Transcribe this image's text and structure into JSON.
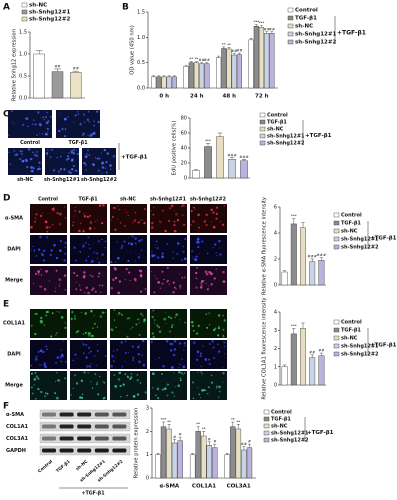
{
  "panel_labels": [
    "A",
    "B",
    "C",
    "D",
    "E",
    "F"
  ],
  "images_c": {
    "labels": [
      "Control",
      "TGF-β1",
      "sh-NC",
      "sh-Snhg12#1",
      "sh-Snhg12#2"
    ],
    "group_label": "+TGF-β1"
  },
  "images_d": {
    "columns": [
      "Control",
      "TGF-β1",
      "sh-NC",
      "sh-Snhg12#1",
      "sh-Snhg12#2"
    ],
    "rows": [
      "α-SMA",
      "DAPI",
      "Merge"
    ]
  },
  "images_e": {
    "rows": [
      "COL1A1",
      "DAPI",
      "Merge"
    ]
  },
  "blot_f": {
    "rows": [
      "α-SMA",
      "COL1A1",
      "COL3A1",
      "GAPDH"
    ],
    "lanes": [
      "Control",
      "TGF-β1",
      "sh-NC",
      "sh-Snhg12#1",
      "sh-Snhg12#2"
    ],
    "group_label": "+TGF-β1"
  },
  "chart_data": [
    {
      "type": "bar",
      "ylabel": "Relative Snhg12 expression",
      "categories": [
        "sh-NC",
        "sh-Snhg12#1",
        "sh-Snhg12#2"
      ],
      "colors": [
        "#ffffff",
        "#9a9a9a",
        "#e9e2c4"
      ],
      "values": [
        1.0,
        0.6,
        0.58
      ],
      "errors": [
        0.08,
        0.06,
        0.03
      ],
      "annotations": [
        null,
        "##",
        "##"
      ],
      "ylim": [
        0,
        1.5
      ],
      "yticks": [
        {
          "value": 0,
          "label": "0.0"
        },
        {
          "value": 0.5,
          "label": "0.5"
        },
        {
          "value": 1,
          "label": "1.0"
        },
        {
          "value": 1.5,
          "label": "1.5"
        }
      ]
    },
    {
      "type": "grouped_bar",
      "ylabel": "OD value (450 nm)",
      "categories": [
        "0 h",
        "24 h",
        "48 h",
        "72 h"
      ],
      "legend_group_label": "+TGF-β1",
      "series": [
        {
          "name": "Control",
          "color": "#ffffff",
          "values": [
            0.22,
            0.43,
            0.6,
            0.95
          ],
          "errors": [
            0.02,
            0.02,
            0.03,
            0.03
          ],
          "annotations": [
            null,
            null,
            null,
            null
          ]
        },
        {
          "name": "TGF-β1",
          "color": "#8c8c8c",
          "values": [
            0.22,
            0.5,
            0.78,
            1.22
          ],
          "errors": [
            0.02,
            0.02,
            0.03,
            0.03
          ],
          "annotations": [
            null,
            "**",
            "**",
            "***"
          ]
        },
        {
          "name": "sh-NC",
          "color": "#e6dfc2",
          "values": [
            0.22,
            0.5,
            0.77,
            1.2
          ],
          "errors": [
            0.02,
            0.02,
            0.03,
            0.03
          ],
          "annotations": [
            null,
            "**",
            "**",
            "***"
          ]
        },
        {
          "name": "sh-Snhg12#1",
          "color": "#c9d3e6",
          "values": [
            0.22,
            0.48,
            0.65,
            1.08
          ],
          "errors": [
            0.02,
            0.02,
            0.03,
            0.03
          ],
          "annotations": [
            null,
            "##",
            "##",
            "##"
          ]
        },
        {
          "name": "sh-Snhg12#2",
          "color": "#b9b3dd",
          "values": [
            0.22,
            0.48,
            0.66,
            1.08
          ],
          "errors": [
            0.02,
            0.02,
            0.03,
            0.03
          ],
          "annotations": [
            null,
            "##",
            "##",
            "##"
          ]
        }
      ],
      "ylim": [
        0,
        1.5
      ],
      "yticks": [
        {
          "value": 0,
          "label": "0.0"
        },
        {
          "value": 0.5,
          "label": "0.5"
        },
        {
          "value": 1,
          "label": "1.0"
        },
        {
          "value": 1.5,
          "label": "1.5"
        }
      ]
    },
    {
      "type": "bar",
      "ylabel": "EdU positive cells(%)",
      "legend_group_label": "+TGF-β1",
      "categories": [
        "Control",
        "TGF-β1",
        "sh-NC",
        "sh-Snhg12#1",
        "sh-Snhg12#2"
      ],
      "colors": [
        "#ffffff",
        "#8c8c8c",
        "#e6dfc2",
        "#c9d3e6",
        "#b9b3dd"
      ],
      "values": [
        10,
        42,
        55,
        25,
        23
      ],
      "errors": [
        1,
        4,
        5,
        2,
        2
      ],
      "annotations": [
        null,
        "***",
        null,
        "###",
        "###"
      ],
      "ylim": [
        0,
        80
      ],
      "yticks": [
        0,
        20,
        40,
        60,
        80
      ]
    },
    {
      "type": "bar",
      "ylabel": "Relative α-SMA fluorescence intensity",
      "legend_group_label": "+TGF-β1",
      "categories": [
        "Control",
        "TGF-β1",
        "sh-NC",
        "sh-Snhg12#1",
        "sh-Snhg12#2"
      ],
      "colors": [
        "#ffffff",
        "#8c8c8c",
        "#e6dfc2",
        "#c9d3e6",
        "#b9b3dd"
      ],
      "values": [
        1,
        4.7,
        4.4,
        1.8,
        1.9
      ],
      "errors": [
        0.1,
        0.4,
        0.4,
        0.2,
        0.2
      ],
      "annotations": [
        null,
        "***",
        null,
        "###",
        "###"
      ],
      "ylim": [
        0,
        6
      ],
      "yticks": [
        0,
        2,
        4,
        6
      ]
    },
    {
      "type": "bar",
      "ylabel": "Relative COL1A1 fluorescence intensity",
      "legend_group_label": "+TGF-β1",
      "categories": [
        "Control",
        "TGF-β1",
        "sh-NC",
        "sh-Snhg12#1",
        "sh-Snhg12#2"
      ],
      "colors": [
        "#ffffff",
        "#8c8c8c",
        "#e6dfc2",
        "#c9d3e6",
        "#b9b3dd"
      ],
      "values": [
        1,
        2.8,
        3.1,
        1.5,
        1.6
      ],
      "errors": [
        0.1,
        0.3,
        0.3,
        0.15,
        0.15
      ],
      "annotations": [
        null,
        "***",
        null,
        "##",
        "##"
      ],
      "ylim": [
        0,
        4
      ],
      "yticks": [
        0,
        1,
        2,
        3,
        4
      ]
    },
    {
      "type": "grouped_bar",
      "ylabel": "Relative protein expression",
      "categories": [
        "α-SMA",
        "COL1A1",
        "COL3A1"
      ],
      "legend_group_label": "+TGF-β1",
      "series": [
        {
          "name": "Control",
          "color": "#ffffff",
          "values": [
            1,
            1,
            1
          ],
          "errors": [
            0.05,
            0.05,
            0.05
          ],
          "annotations": [
            null,
            null,
            null
          ]
        },
        {
          "name": "TGF-β1",
          "color": "#8c8c8c",
          "values": [
            2.2,
            2.0,
            2.2
          ],
          "errors": [
            0.2,
            0.2,
            0.2
          ],
          "annotations": [
            "***",
            "**",
            "**"
          ]
        },
        {
          "name": "sh-NC",
          "color": "#e6dfc2",
          "values": [
            2.1,
            1.8,
            2.1
          ],
          "errors": [
            0.2,
            0.2,
            0.2
          ],
          "annotations": [
            "**",
            "**",
            "**"
          ]
        },
        {
          "name": "sh-Snhg12#1",
          "color": "#c9d3e6",
          "values": [
            1.5,
            1.4,
            1.2
          ],
          "errors": [
            0.15,
            0.15,
            0.15
          ],
          "annotations": [
            "#",
            "#",
            "##"
          ]
        },
        {
          "name": "sh-Snhg12#2",
          "color": "#b9b3dd",
          "values": [
            1.6,
            1.3,
            1.3
          ],
          "errors": [
            0.15,
            0.15,
            0.15
          ],
          "annotations": [
            "#",
            "#",
            "#"
          ]
        }
      ],
      "ylim": [
        0,
        3
      ],
      "yticks": [
        0,
        1,
        2,
        3
      ]
    }
  ]
}
